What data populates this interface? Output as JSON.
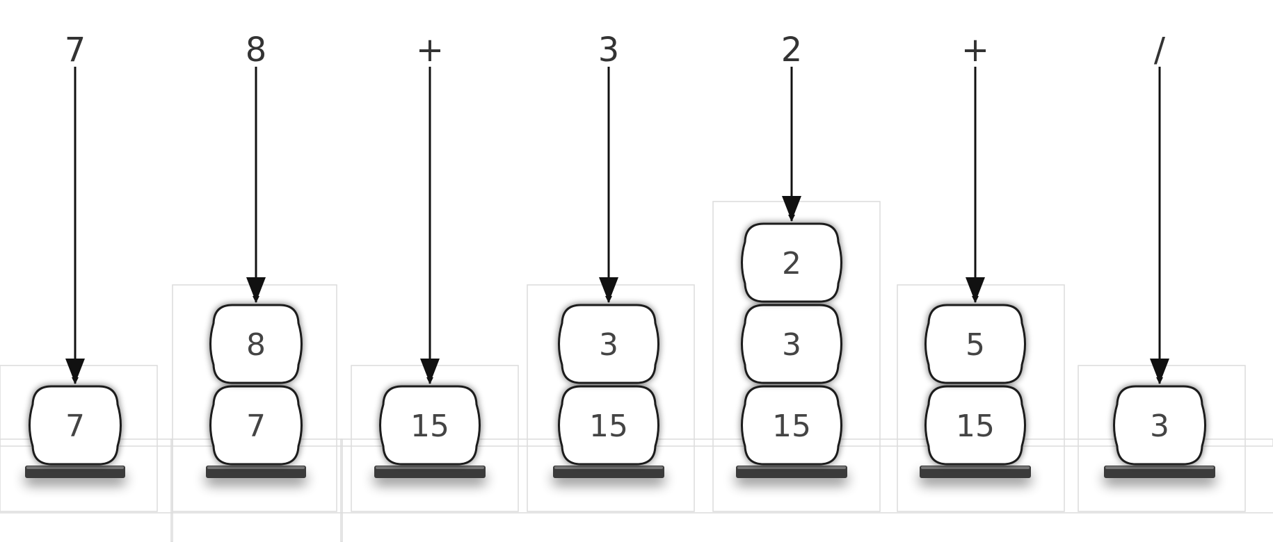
{
  "steps": [
    {
      "token": "7",
      "stack": [
        "7"
      ]
    },
    {
      "token": "8",
      "stack": [
        "7",
        "8"
      ]
    },
    {
      "token": "+",
      "stack": [
        "15"
      ]
    },
    {
      "token": "3",
      "stack": [
        "15",
        "3"
      ]
    },
    {
      "token": "2",
      "stack": [
        "15",
        "3",
        "2"
      ]
    },
    {
      "token": "+",
      "stack": [
        "15",
        "5"
      ]
    },
    {
      "token": "/",
      "stack": [
        "3"
      ]
    }
  ],
  "colors": {
    "arrow": "#111111",
    "plate": "#3a3a3a",
    "plate_top": "#777777",
    "cell_fill": "#ffffff",
    "cell_stroke": "#1a1a1a",
    "faint_box": "#dcdcdc",
    "token_text": "#333333",
    "cell_text": "#444444"
  }
}
